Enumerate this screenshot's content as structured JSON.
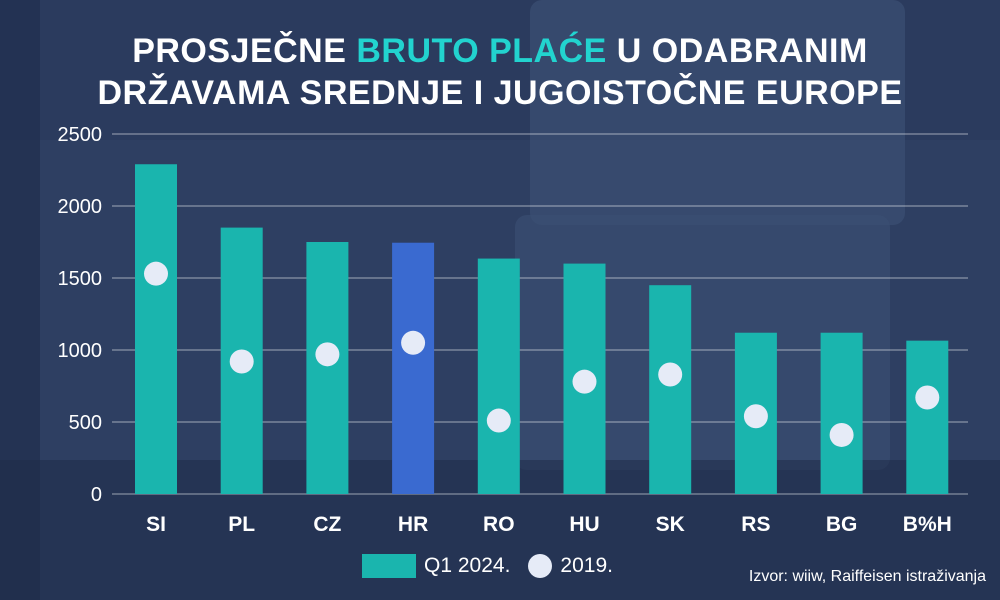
{
  "title": {
    "line1_a": "PROSJEČNE ",
    "line1_hl": "BRUTO PLAĆE",
    "line1_b": " U ODABRANIM",
    "line2": "DRŽAVAMA SREDNJE I JUGOISTOČNE EUROPE"
  },
  "colors": {
    "bar": "#1ab5ae",
    "bar_highlight": "#3a6ad0",
    "dot": "#e6ebf7",
    "title_highlight": "#22d3cf"
  },
  "chart_data": {
    "type": "bar",
    "categories": [
      "SI",
      "PL",
      "CZ",
      "HR",
      "RO",
      "HU",
      "SK",
      "RS",
      "BG",
      "B%H"
    ],
    "series": [
      {
        "name": "Q1 2024.",
        "values": [
          2290,
          1850,
          1750,
          1745,
          1635,
          1600,
          1450,
          1120,
          1120,
          1065
        ]
      },
      {
        "name": "2019.",
        "values": [
          1530,
          920,
          970,
          1050,
          510,
          780,
          830,
          540,
          410,
          670
        ]
      }
    ],
    "highlight_category": "HR",
    "ylim": [
      0,
      2500
    ],
    "yticks": [
      0,
      500,
      1000,
      1500,
      2000,
      2500
    ],
    "grid": true,
    "legend_position": "bottom"
  },
  "legend": {
    "bar_label": "Q1 2024.",
    "dot_label": "2019."
  },
  "source": "Izvor: wiiw, Raiffeisen istraživanja"
}
